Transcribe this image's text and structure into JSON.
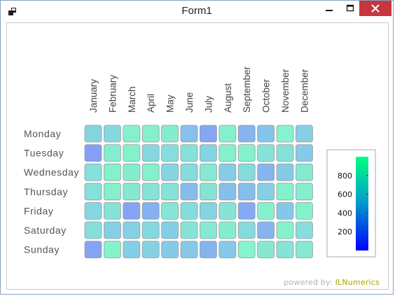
{
  "window": {
    "title": "Form1"
  },
  "footer": {
    "powered_label": "powered by:",
    "brand": "ILNumerics"
  },
  "chart_data": {
    "type": "heatmap",
    "x_categories": [
      "January",
      "February",
      "March",
      "April",
      "May",
      "June",
      "July",
      "August",
      "September",
      "October",
      "November",
      "December"
    ],
    "y_categories": [
      "Monday",
      "Tuesday",
      "Wednesday",
      "Thursday",
      "Friday",
      "Saturday",
      "Sunday"
    ],
    "values": [
      [
        570,
        610,
        860,
        840,
        820,
        410,
        230,
        860,
        320,
        430,
        880,
        520
      ],
      [
        180,
        820,
        860,
        580,
        650,
        690,
        560,
        860,
        870,
        710,
        700,
        470
      ],
      [
        690,
        860,
        820,
        840,
        560,
        630,
        790,
        490,
        640,
        330,
        480,
        780
      ],
      [
        690,
        860,
        780,
        720,
        700,
        380,
        720,
        400,
        400,
        520,
        860,
        840
      ],
      [
        580,
        700,
        220,
        300,
        740,
        640,
        560,
        720,
        250,
        860,
        450,
        860
      ],
      [
        660,
        510,
        520,
        600,
        500,
        720,
        780,
        820,
        620,
        320,
        860,
        650
      ],
      [
        210,
        870,
        500,
        530,
        480,
        460,
        330,
        470,
        880,
        780,
        710,
        780
      ]
    ],
    "colorbar": {
      "ticks": [
        200,
        400,
        600,
        800
      ],
      "range": [
        0,
        1000
      ]
    },
    "colors": {
      "low": "#0000ff",
      "mid": "#0099cc",
      "high": "#00ff80",
      "tile_alpha": 0.48,
      "tile_border": "#9a9a9a"
    }
  }
}
